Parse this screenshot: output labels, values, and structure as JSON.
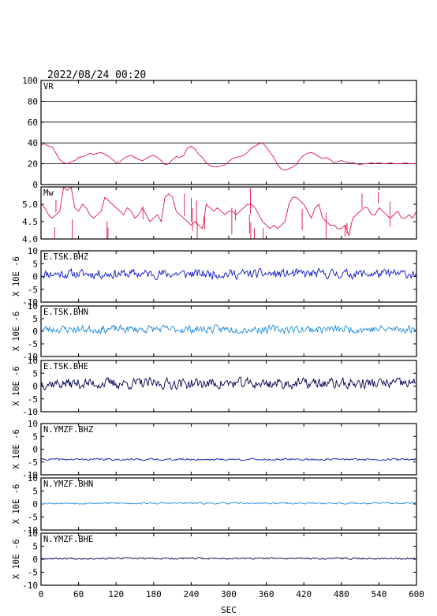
{
  "header": {
    "timestamp": "2022/08/24 00:20"
  },
  "colors": {
    "frame": "#000000",
    "vr_mw": "#e0134a",
    "tsk_bhz": "#0a14c8",
    "tsk_bhn": "#1e8cdc",
    "tsk_bhe": "#000050",
    "ymzf_bhz": "#0a14b4",
    "ymzf_bhn": "#1e8cdc",
    "ymzf_bhe": "#000050"
  },
  "chart_data": [
    {
      "type": "line",
      "id": "vr",
      "label": "VR",
      "ylim": [
        0,
        100
      ],
      "yticks": [
        0,
        20,
        40,
        60,
        80,
        100
      ],
      "grid": true,
      "color_key": "vr_mw",
      "x": [
        0,
        6,
        12,
        18,
        24,
        30,
        36,
        42,
        48,
        54,
        60,
        66,
        72,
        78,
        84,
        90,
        96,
        102,
        108,
        114,
        120,
        126,
        132,
        138,
        144,
        150,
        156,
        162,
        168,
        174,
        180,
        186,
        192,
        198,
        204,
        210,
        216,
        222,
        228,
        234,
        240,
        246,
        252,
        258,
        264,
        270,
        276,
        282,
        288,
        294,
        300,
        306,
        312,
        318,
        324,
        330,
        336,
        342,
        348,
        354,
        360,
        366,
        372,
        378,
        384,
        390,
        396,
        402,
        408,
        414,
        420,
        426,
        432,
        438,
        444,
        450,
        456,
        462,
        468,
        474,
        480,
        486,
        492,
        498,
        504,
        510,
        516,
        522,
        528,
        534,
        540,
        546,
        552,
        558,
        564,
        570,
        576,
        582,
        588,
        594,
        600
      ],
      "values": [
        38,
        39,
        37,
        36,
        30,
        24,
        21,
        20,
        22,
        23,
        26,
        27,
        28,
        30,
        29,
        30,
        31,
        29,
        27,
        24,
        21,
        22,
        25,
        27,
        28,
        26,
        24,
        23,
        25,
        27,
        28,
        26,
        23,
        19,
        20,
        24,
        27,
        26,
        28,
        35,
        37,
        34,
        29,
        26,
        21,
        18,
        17,
        17,
        18,
        19,
        22,
        25,
        26,
        27,
        28,
        31,
        35,
        37,
        39,
        40,
        36,
        31,
        26,
        19,
        15,
        14,
        15,
        17,
        19,
        25,
        28,
        30,
        31,
        29,
        27,
        25,
        26,
        24,
        21,
        22,
        23,
        22,
        21,
        21,
        20,
        19,
        20,
        20,
        21,
        20,
        21,
        20,
        20,
        21,
        20,
        20,
        20,
        21,
        20,
        20,
        20
      ]
    },
    {
      "type": "line",
      "id": "mw",
      "label": "Mw",
      "ylim": [
        4.0,
        5.5
      ],
      "yticks": [
        4.0,
        4.5,
        5.0
      ],
      "grid": false,
      "color_key": "vr_mw",
      "x": [
        0,
        6,
        12,
        18,
        24,
        30,
        36,
        42,
        48,
        54,
        60,
        66,
        72,
        78,
        84,
        90,
        96,
        102,
        108,
        114,
        120,
        126,
        132,
        138,
        144,
        150,
        156,
        162,
        168,
        174,
        180,
        186,
        192,
        198,
        204,
        210,
        216,
        222,
        228,
        234,
        240,
        246,
        252,
        258,
        264,
        270,
        276,
        282,
        288,
        294,
        300,
        306,
        312,
        318,
        324,
        330,
        336,
        342,
        348,
        354,
        360,
        366,
        372,
        378,
        384,
        390,
        396,
        402,
        408,
        414,
        420,
        426,
        432,
        438,
        444,
        450,
        456,
        462,
        468,
        474,
        480,
        486,
        492,
        498,
        504,
        510,
        516,
        522,
        528,
        534,
        540,
        546,
        552,
        558,
        564,
        570,
        576,
        582,
        588,
        594,
        600
      ],
      "values": [
        5.0,
        4.9,
        4.7,
        4.6,
        4.7,
        4.8,
        5.5,
        5.4,
        5.5,
        4.9,
        4.8,
        5.0,
        4.9,
        4.7,
        4.6,
        4.7,
        4.8,
        5.2,
        5.1,
        5.0,
        4.9,
        4.8,
        4.7,
        4.9,
        4.8,
        4.6,
        4.7,
        4.9,
        4.7,
        4.5,
        4.6,
        4.7,
        4.5,
        5.2,
        5.3,
        5.2,
        4.8,
        4.7,
        4.6,
        4.5,
        4.4,
        4.5,
        4.4,
        4.3,
        5.0,
        4.9,
        4.8,
        4.9,
        4.8,
        4.7,
        4.8,
        4.8,
        4.7,
        4.8,
        4.9,
        5.0,
        5.0,
        4.9,
        4.7,
        4.5,
        4.4,
        4.3,
        4.4,
        4.3,
        4.4,
        4.5,
        5.0,
        5.2,
        5.2,
        5.1,
        5.0,
        4.8,
        4.6,
        4.9,
        5.0,
        4.6,
        4.5,
        4.4,
        4.4,
        4.3,
        4.3,
        4.4,
        4.1,
        4.6,
        4.7,
        4.8,
        4.9,
        4.9,
        4.7,
        4.7,
        4.9,
        4.8,
        4.7,
        4.6,
        4.7,
        4.8,
        4.6,
        4.6,
        4.7,
        4.6,
        4.8
      ]
    },
    {
      "type": "line",
      "id": "tsk_bhz",
      "label": "E.TSK.BHZ",
      "ylim": [
        -10,
        10
      ],
      "yticks": [
        -10,
        -5,
        0,
        5,
        10
      ],
      "ylabel": "X 10E -6",
      "color_key": "tsk_bhz",
      "offset": 1.0,
      "amplitude": 1.6,
      "seed": 11
    },
    {
      "type": "line",
      "id": "tsk_bhn",
      "label": "E.TSK.BHN",
      "ylim": [
        -10,
        10
      ],
      "yticks": [
        -10,
        -5,
        0,
        5,
        10
      ],
      "ylabel": "X 10E -6",
      "color_key": "tsk_bhn",
      "offset": 0.8,
      "amplitude": 1.4,
      "seed": 23
    },
    {
      "type": "line",
      "id": "tsk_bhe",
      "label": "E.TSK.BHE",
      "ylim": [
        -10,
        10
      ],
      "yticks": [
        -10,
        -5,
        0,
        5,
        10
      ],
      "ylabel": "X 10E -6",
      "color_key": "tsk_bhe",
      "offset": 1.0,
      "amplitude": 1.9,
      "seed": 37
    },
    {
      "type": "line",
      "id": "ymzf_bhz",
      "label": "N.YMZF.BHZ",
      "ylim": [
        -10,
        10
      ],
      "yticks": [
        -10,
        -5,
        0,
        5,
        10
      ],
      "ylabel": "X 10E -6",
      "color_key": "ymzf_bhz",
      "offset": -4.0,
      "amplitude": 0.35,
      "seed": 41
    },
    {
      "type": "line",
      "id": "ymzf_bhn",
      "label": "N.YMZF.BHN",
      "ylim": [
        -10,
        10
      ],
      "yticks": [
        -10,
        -5,
        0,
        5,
        10
      ],
      "ylabel": "X 10E -6",
      "color_key": "ymzf_bhn",
      "offset": 0.3,
      "amplitude": 0.3,
      "seed": 53
    },
    {
      "type": "line",
      "id": "ymzf_bhe",
      "label": "N.YMZF.BHE",
      "ylim": [
        -10,
        10
      ],
      "yticks": [
        -10,
        -5,
        0,
        5,
        10
      ],
      "ylabel": "X 10E -6",
      "color_key": "ymzf_bhe",
      "offset": 0.3,
      "amplitude": 0.3,
      "seed": 67
    }
  ],
  "x_axis": {
    "label": "SEC",
    "ticks": [
      0,
      60,
      120,
      180,
      240,
      300,
      360,
      420,
      480,
      540,
      600
    ],
    "range": [
      0,
      600
    ]
  }
}
